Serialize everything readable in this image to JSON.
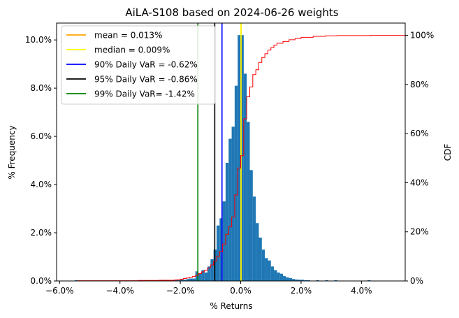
{
  "chart_data": {
    "type": "bar",
    "title": "AiLA-S108 based on 2024-06-26 weights",
    "xlabel": "% Returns",
    "ylabel": "% Frequency",
    "y2label": "CDF",
    "xlim": [
      -6.1,
      5.45
    ],
    "ylim": [
      0,
      10.7
    ],
    "y2lim": [
      0,
      105
    ],
    "grid": false,
    "legend_position": "top-left",
    "xticks": [
      {
        "value": -6,
        "label": "−6.0%"
      },
      {
        "value": -4,
        "label": "−4.0%"
      },
      {
        "value": -2,
        "label": "−2.0%"
      },
      {
        "value": 0,
        "label": "0.0%"
      },
      {
        "value": 2,
        "label": "2.0%"
      },
      {
        "value": 4,
        "label": "4.0%"
      }
    ],
    "yticks": [
      {
        "value": 0,
        "label": "0.0%"
      },
      {
        "value": 2,
        "label": "2.0%"
      },
      {
        "value": 4,
        "label": "4.0%"
      },
      {
        "value": 6,
        "label": "6.0%"
      },
      {
        "value": 8,
        "label": "8.0%"
      },
      {
        "value": 10,
        "label": "10.0%"
      }
    ],
    "y2ticks": [
      {
        "value": 0,
        "label": "0%"
      },
      {
        "value": 20,
        "label": "20%"
      },
      {
        "value": 40,
        "label": "40%"
      },
      {
        "value": 60,
        "label": "60%"
      },
      {
        "value": 80,
        "label": "80%"
      },
      {
        "value": 100,
        "label": "100%"
      }
    ],
    "histogram": {
      "color": "#1f77b4",
      "bins": [
        {
          "x0": -5.5,
          "x1": -5.4,
          "y": 0.03
        },
        {
          "x0": -3.4,
          "x1": -3.3,
          "y": 0.03
        },
        {
          "x0": -2.7,
          "x1": -2.6,
          "y": 0.03
        },
        {
          "x0": -2.2,
          "x1": -2.1,
          "y": 0.03
        },
        {
          "x0": -2.1,
          "x1": -2.0,
          "y": 0.03
        },
        {
          "x0": -2.0,
          "x1": -1.9,
          "y": 0.05
        },
        {
          "x0": -1.9,
          "x1": -1.8,
          "y": 0.05
        },
        {
          "x0": -1.8,
          "x1": -1.7,
          "y": 0.08
        },
        {
          "x0": -1.7,
          "x1": -1.6,
          "y": 0.1
        },
        {
          "x0": -1.6,
          "x1": -1.5,
          "y": 0.1
        },
        {
          "x0": -1.5,
          "x1": -1.4,
          "y": 0.4
        },
        {
          "x0": -1.4,
          "x1": -1.3,
          "y": 0.3
        },
        {
          "x0": -1.3,
          "x1": -1.2,
          "y": 0.45
        },
        {
          "x0": -1.2,
          "x1": -1.1,
          "y": 0.35
        },
        {
          "x0": -1.1,
          "x1": -1.0,
          "y": 0.6
        },
        {
          "x0": -1.0,
          "x1": -0.9,
          "y": 0.9
        },
        {
          "x0": -0.9,
          "x1": -0.8,
          "y": 1.3
        },
        {
          "x0": -0.8,
          "x1": -0.7,
          "y": 2.3
        },
        {
          "x0": -0.7,
          "x1": -0.6,
          "y": 2.6
        },
        {
          "x0": -0.6,
          "x1": -0.5,
          "y": 3.3
        },
        {
          "x0": -0.5,
          "x1": -0.4,
          "y": 4.9
        },
        {
          "x0": -0.4,
          "x1": -0.3,
          "y": 5.9
        },
        {
          "x0": -0.3,
          "x1": -0.2,
          "y": 6.4
        },
        {
          "x0": -0.2,
          "x1": -0.1,
          "y": 8.1
        },
        {
          "x0": -0.1,
          "x1": 0.0,
          "y": 10.2
        },
        {
          "x0": 0.0,
          "x1": 0.1,
          "y": 10.2
        },
        {
          "x0": 0.1,
          "x1": 0.2,
          "y": 8.6
        },
        {
          "x0": 0.2,
          "x1": 0.3,
          "y": 6.6
        },
        {
          "x0": 0.3,
          "x1": 0.4,
          "y": 4.6
        },
        {
          "x0": 0.4,
          "x1": 0.5,
          "y": 3.5
        },
        {
          "x0": 0.5,
          "x1": 0.6,
          "y": 2.4
        },
        {
          "x0": 0.6,
          "x1": 0.7,
          "y": 1.8
        },
        {
          "x0": 0.7,
          "x1": 0.8,
          "y": 1.3
        },
        {
          "x0": 0.8,
          "x1": 0.9,
          "y": 0.95
        },
        {
          "x0": 0.9,
          "x1": 1.0,
          "y": 0.85
        },
        {
          "x0": 1.0,
          "x1": 1.1,
          "y": 0.6
        },
        {
          "x0": 1.1,
          "x1": 1.2,
          "y": 0.45
        },
        {
          "x0": 1.2,
          "x1": 1.3,
          "y": 0.35
        },
        {
          "x0": 1.3,
          "x1": 1.4,
          "y": 0.3
        },
        {
          "x0": 1.4,
          "x1": 1.5,
          "y": 0.2
        },
        {
          "x0": 1.5,
          "x1": 1.6,
          "y": 0.15
        },
        {
          "x0": 1.6,
          "x1": 1.7,
          "y": 0.12
        },
        {
          "x0": 1.7,
          "x1": 1.8,
          "y": 0.08
        },
        {
          "x0": 1.8,
          "x1": 1.9,
          "y": 0.06
        },
        {
          "x0": 1.9,
          "x1": 2.0,
          "y": 0.05
        },
        {
          "x0": 2.0,
          "x1": 2.1,
          "y": 0.05
        },
        {
          "x0": 2.1,
          "x1": 2.2,
          "y": 0.03
        },
        {
          "x0": 2.2,
          "x1": 2.3,
          "y": 0.03
        },
        {
          "x0": 2.5,
          "x1": 2.6,
          "y": 0.03
        },
        {
          "x0": 2.8,
          "x1": 2.9,
          "y": 0.03
        },
        {
          "x0": 3.1,
          "x1": 3.2,
          "y": 0.03
        },
        {
          "x0": 4.2,
          "x1": 4.3,
          "y": 0.03
        }
      ]
    },
    "cdf": {
      "color": "#ff0000",
      "points": [
        [
          -6.1,
          0
        ],
        [
          -5.5,
          0
        ],
        [
          -5.4,
          0.1
        ],
        [
          -3.4,
          0.2
        ],
        [
          -2.7,
          0.3
        ],
        [
          -2.2,
          0.4
        ],
        [
          -2.1,
          0.5
        ],
        [
          -2.0,
          0.7
        ],
        [
          -1.9,
          1.0
        ],
        [
          -1.8,
          1.2
        ],
        [
          -1.7,
          1.5
        ],
        [
          -1.6,
          1.8
        ],
        [
          -1.5,
          2.3
        ],
        [
          -1.4,
          3.0
        ],
        [
          -1.3,
          3.7
        ],
        [
          -1.2,
          4.3
        ],
        [
          -1.1,
          5.3
        ],
        [
          -1.0,
          6.5
        ],
        [
          -0.9,
          8.1
        ],
        [
          -0.8,
          10.0
        ],
        [
          -0.7,
          12.0
        ],
        [
          -0.6,
          15.0
        ],
        [
          -0.5,
          19.0
        ],
        [
          -0.4,
          22.0
        ],
        [
          -0.3,
          26.0
        ],
        [
          -0.2,
          35.0
        ],
        [
          -0.1,
          46.0
        ],
        [
          0.0,
          51.0
        ],
        [
          0.1,
          66.0
        ],
        [
          0.2,
          75.0
        ],
        [
          0.3,
          79.0
        ],
        [
          0.4,
          84.0
        ],
        [
          0.5,
          86.0
        ],
        [
          0.6,
          89.0
        ],
        [
          0.7,
          91.0
        ],
        [
          0.8,
          92.5
        ],
        [
          0.9,
          94.0
        ],
        [
          1.0,
          95.0
        ],
        [
          1.1,
          96.0
        ],
        [
          1.2,
          96.8
        ],
        [
          1.4,
          97.5
        ],
        [
          1.6,
          98.2
        ],
        [
          1.8,
          98.7
        ],
        [
          2.0,
          99.2
        ],
        [
          2.4,
          99.6
        ],
        [
          2.8,
          99.8
        ],
        [
          3.2,
          99.9
        ],
        [
          4.3,
          100.0
        ],
        [
          5.45,
          100.0
        ]
      ]
    },
    "vlines": [
      {
        "name": "mean = 0.013%",
        "x": 0.013,
        "color": "#ffa500"
      },
      {
        "name": "median = 0.009%",
        "x": 0.009,
        "color": "#ffff00"
      },
      {
        "name": "90% Daily VaR = -0.62%",
        "x": -0.62,
        "color": "#0000ff"
      },
      {
        "name": "95% Daily VaR = -0.86%",
        "x": -0.86,
        "color": "#000000"
      },
      {
        "name": "99% Daily VaR= -1.42%",
        "x": -1.42,
        "color": "#008000"
      }
    ]
  }
}
